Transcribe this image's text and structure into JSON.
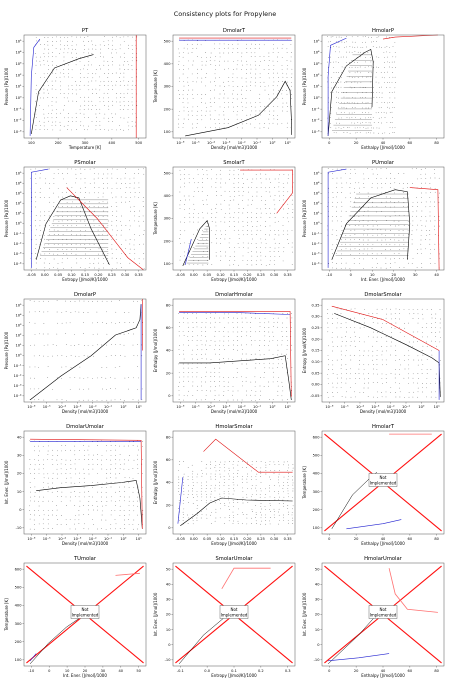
{
  "figure": {
    "title": "Consistency plots for Propylene"
  },
  "colors": {
    "vapor_branch": "#2020d0",
    "liquid_branch": "#e01010",
    "saturation_curve": "#000000",
    "grid_points": "#333333",
    "frame": "#555555"
  },
  "chart_data": [
    {
      "type": "scatter",
      "title": "PT",
      "xlabel": "Temperature [K]",
      "ylabel": "Pressure [Pa]/1000",
      "xlim": [
        80,
        580
      ],
      "ylim": [
        -3.5,
        6.5
      ],
      "yscale": "log",
      "xticks": [
        "100",
        "200",
        "300",
        "400",
        "500"
      ],
      "yticks": [
        "10⁻³",
        "10⁻²",
        "10⁻¹",
        "10⁰",
        "10¹",
        "10²",
        "10³",
        "10⁴",
        "10⁵"
      ],
      "has_data": true
    },
    {
      "type": "scatter",
      "title": "DmolarT",
      "xlabel": "Density [mol/m3]/1000",
      "ylabel": "Temperature [K]",
      "xlim": [
        -6.5,
        1.5
      ],
      "ylim": [
        60,
        600
      ],
      "xscale": "log",
      "xticks": [
        "10⁻⁶",
        "10⁻⁵",
        "10⁻⁴",
        "10⁻³",
        "10⁻²",
        "10⁻¹",
        "10⁰",
        "10¹"
      ],
      "yticks": [
        "100",
        "200",
        "300",
        "400",
        "500"
      ],
      "has_data": true
    },
    {
      "type": "scatter",
      "title": "HmolarP",
      "xlabel": "Enthalpy [J/mol]/1000",
      "ylabel": "Pressure [Pa]/1000",
      "xlim": [
        -10,
        90
      ],
      "ylim": [
        -3.5,
        6.5
      ],
      "yscale": "log",
      "xticks": [
        "0",
        "20",
        "40",
        "60",
        "80"
      ],
      "yticks": [
        "10⁻³",
        "10⁻²",
        "10⁻¹",
        "10⁰",
        "10¹",
        "10²",
        "10³",
        "10⁴",
        "10⁵"
      ],
      "has_data": true
    },
    {
      "type": "scatter",
      "title": "PSmolar",
      "xlabel": "Entropy [J/mol/K]/1000",
      "ylabel": "Pressure [Pa]/1000",
      "xlim": [
        -0.07,
        0.37
      ],
      "ylim": [
        -4.5,
        6.5
      ],
      "yscale": "log",
      "xticks": [
        "-0.05",
        "0.00",
        "0.05",
        "0.10",
        "0.15",
        "0.20",
        "0.25",
        "0.30",
        "0.35"
      ],
      "yticks": [
        "10⁻⁴",
        "10⁻³",
        "10⁻²",
        "10⁻¹",
        "10⁰",
        "10¹",
        "10²",
        "10³",
        "10⁴",
        "10⁵"
      ],
      "has_data": true
    },
    {
      "type": "scatter",
      "title": "SmolarT",
      "xlabel": "Entropy [J/mol/K]/1000",
      "ylabel": "Temperature [K]",
      "xlim": [
        -0.07,
        0.37
      ],
      "ylim": [
        60,
        600
      ],
      "xticks": [
        "-0.05",
        "0.00",
        "0.05",
        "0.10",
        "0.15",
        "0.20",
        "0.25",
        "0.30",
        "0.35"
      ],
      "yticks": [
        "100",
        "200",
        "300",
        "400",
        "500"
      ],
      "has_data": true
    },
    {
      "type": "scatter",
      "title": "PUmolar",
      "xlabel": "Int. Ener. [J/mol]/1000",
      "ylabel": "Pressure [Pa]/1000",
      "xlim": [
        -15,
        50
      ],
      "ylim": [
        -4.5,
        6.5
      ],
      "yscale": "log",
      "xticks": [
        "-10",
        "0",
        "10",
        "20",
        "30",
        "40"
      ],
      "yticks": [
        "10⁻⁴",
        "10⁻³",
        "10⁻²",
        "10⁻¹",
        "10⁰",
        "10¹",
        "10²",
        "10³",
        "10⁴",
        "10⁵"
      ],
      "has_data": true
    },
    {
      "type": "scatter",
      "title": "DmolarP",
      "xlabel": "Density [mol/m3]/1000",
      "ylabel": "Pressure [Pa]/1000",
      "xlim": [
        -6.5,
        1.5
      ],
      "ylim": [
        -4.5,
        6.5
      ],
      "xscale": "log",
      "yscale": "log",
      "xticks": [
        "10⁻⁶",
        "10⁻⁵",
        "10⁻⁴",
        "10⁻³",
        "10⁻²",
        "10⁻¹",
        "10⁰",
        "10¹"
      ],
      "yticks": [
        "10⁻⁴",
        "10⁻³",
        "10⁻²",
        "10⁻¹",
        "10⁰",
        "10¹",
        "10²",
        "10³",
        "10⁴",
        "10⁵"
      ],
      "has_data": true
    },
    {
      "type": "scatter",
      "title": "DmolarHmolar",
      "xlabel": "Density [mol/m3]/1000",
      "ylabel": "Enthalpy [J/mol]/1000",
      "xlim": [
        -6.5,
        1.5
      ],
      "ylim": [
        -10,
        90
      ],
      "xscale": "log",
      "xticks": [
        "10⁻⁶",
        "10⁻⁵",
        "10⁻⁴",
        "10⁻³",
        "10⁻²",
        "10⁻¹",
        "10⁰",
        "10¹"
      ],
      "yticks": [
        "0",
        "20",
        "40",
        "60",
        "80"
      ],
      "has_data": true
    },
    {
      "type": "scatter",
      "title": "DmolarSmolar",
      "xlabel": "Density [mol/m3]/1000",
      "ylabel": "Entropy [J/mol/K]/1000",
      "xlim": [
        -6.5,
        1.5
      ],
      "ylim": [
        -0.07,
        0.37
      ],
      "xscale": "log",
      "xticks": [
        "10⁻⁶",
        "10⁻⁵",
        "10⁻⁴",
        "10⁻³",
        "10⁻²",
        "10⁻¹",
        "10⁰",
        "10¹"
      ],
      "yticks": [
        "-0.05",
        "0.00",
        "0.05",
        "0.10",
        "0.15",
        "0.20",
        "0.25",
        "0.30",
        "0.35"
      ],
      "has_data": true
    },
    {
      "type": "scatter",
      "title": "DmolarUmolar",
      "xlabel": "Density [mol/m3]/1000",
      "ylabel": "Int. Ener. [J/mol]/1000",
      "xlim": [
        -6.5,
        1.5
      ],
      "ylim": [
        -12,
        48
      ],
      "xscale": "log",
      "xticks": [
        "10⁻⁶",
        "10⁻⁵",
        "10⁻⁴",
        "10⁻³",
        "10⁻²",
        "10⁻¹",
        "10⁰",
        "10¹"
      ],
      "yticks": [
        "-10",
        "0",
        "10",
        "20",
        "30",
        "40"
      ],
      "has_data": true
    },
    {
      "type": "scatter",
      "title": "HmolarSmolar",
      "xlabel": "Entropy [J/mol/K]/1000",
      "ylabel": "Enthalpy [J/mol]/1000",
      "xlim": [
        -0.07,
        0.37
      ],
      "ylim": [
        -10,
        90
      ],
      "xticks": [
        "-0.05",
        "0.00",
        "0.05",
        "0.10",
        "0.15",
        "0.20",
        "0.25",
        "0.30",
        "0.35"
      ],
      "yticks": [
        "0",
        "20",
        "40",
        "60",
        "80"
      ],
      "has_data": true
    },
    {
      "type": "scatter",
      "title": "HmolarT",
      "xlabel": "Enthalpy [J/mol]/1000",
      "ylabel": "Temperature [K]",
      "xlim": [
        -15,
        95
      ],
      "ylim": [
        40,
        620
      ],
      "xticks": [
        "0",
        "20",
        "40",
        "60",
        "80"
      ],
      "yticks": [
        "100",
        "200",
        "300",
        "400",
        "500",
        "600"
      ],
      "has_data": false,
      "annotation": "Not\nImplemented"
    },
    {
      "type": "scatter",
      "title": "TUmolar",
      "xlabel": "Int. Ener. [J/mol]/1000",
      "ylabel": "Temperature [K]",
      "xlim": [
        -12,
        52
      ],
      "ylim": [
        40,
        620
      ],
      "xticks": [
        "-10",
        "0",
        "10",
        "20",
        "30",
        "40",
        "50"
      ],
      "yticks": [
        "100",
        "200",
        "300",
        "400",
        "500",
        "600"
      ],
      "has_data": false,
      "annotation": "Not\nImplemented"
    },
    {
      "type": "scatter",
      "title": "SmolarUmolar",
      "xlabel": "Entropy [J/mol/K]/1000",
      "ylabel": "Int. Ener. [J/mol]/1000",
      "xlim": [
        -0.1,
        0.37
      ],
      "ylim": [
        -12,
        52
      ],
      "xticks": [
        "-0.1",
        "0.0",
        "0.1",
        "0.2",
        "0.3"
      ],
      "yticks": [
        "-10",
        "0",
        "10",
        "20",
        "30",
        "40",
        "50"
      ],
      "has_data": false,
      "annotation": "Not\nImplemented"
    },
    {
      "type": "scatter",
      "title": "HmolarUmolar",
      "xlabel": "Enthalpy [J/mol]/1000",
      "ylabel": "Int. Ener. [J/mol]/1000",
      "xlim": [
        -15,
        95
      ],
      "ylim": [
        -12,
        52
      ],
      "xticks": [
        "0",
        "20",
        "40",
        "60",
        "80"
      ],
      "yticks": [
        "-10",
        "0",
        "10",
        "20",
        "30",
        "40",
        "50"
      ],
      "has_data": false,
      "annotation": "Not\nImplemented"
    }
  ]
}
